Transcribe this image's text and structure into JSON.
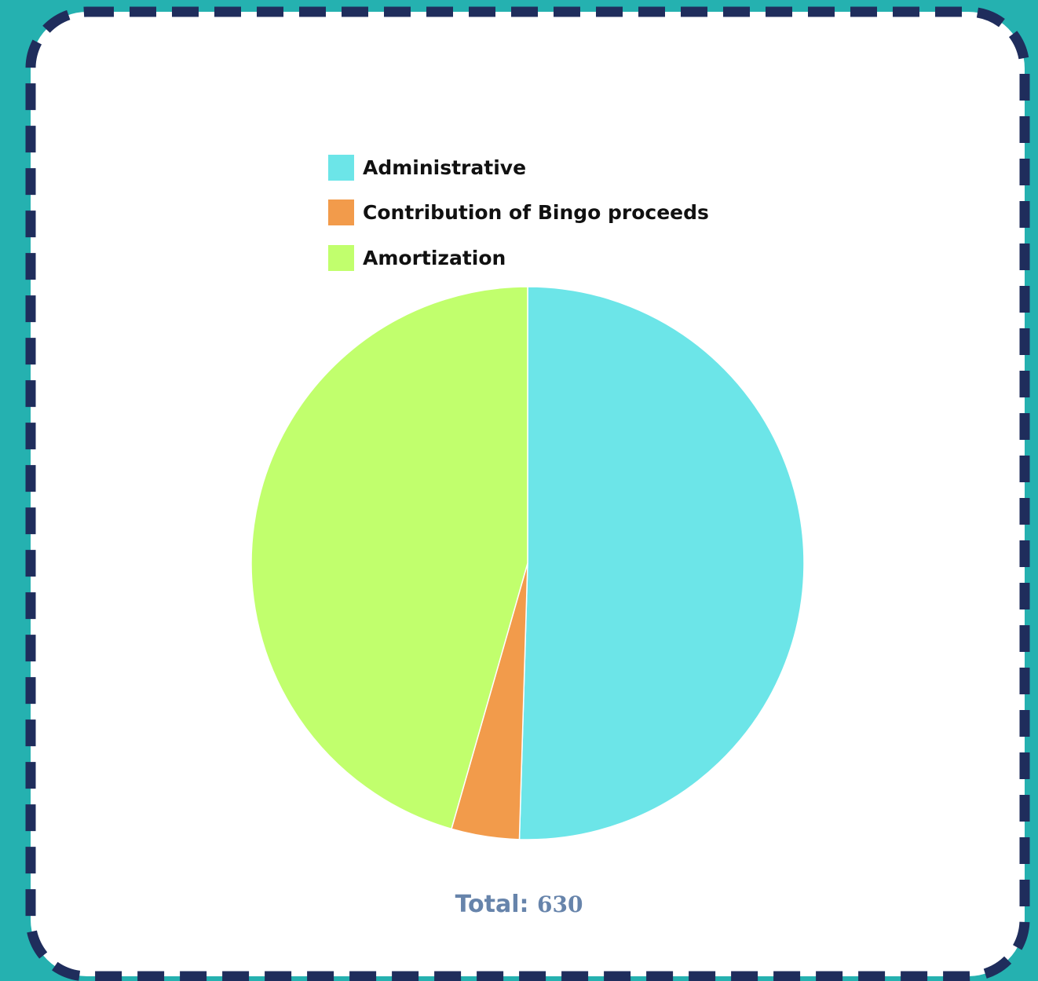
{
  "theme": {
    "background": "#25b1b0",
    "card": "#ffffff",
    "border": "#1f2d5c",
    "total_color": "#6784ab"
  },
  "chart_data": {
    "type": "pie",
    "categories": [
      "Administrative",
      "Contribution of Bingo proceeds",
      "Amortization"
    ],
    "values": [
      318,
      25,
      287
    ],
    "colors": [
      "#6ce5e8",
      "#f29b4b",
      "#c1ff6d"
    ],
    "legend": "top-left"
  },
  "legend": {
    "items": [
      {
        "label": "Administrative",
        "color": "#6ce5e8"
      },
      {
        "label": "Contribution of Bingo proceeds",
        "color": "#f29b4b"
      },
      {
        "label": "Amortization",
        "color": "#c1ff6d"
      }
    ]
  },
  "total": {
    "label": "Total:",
    "value": "630"
  }
}
